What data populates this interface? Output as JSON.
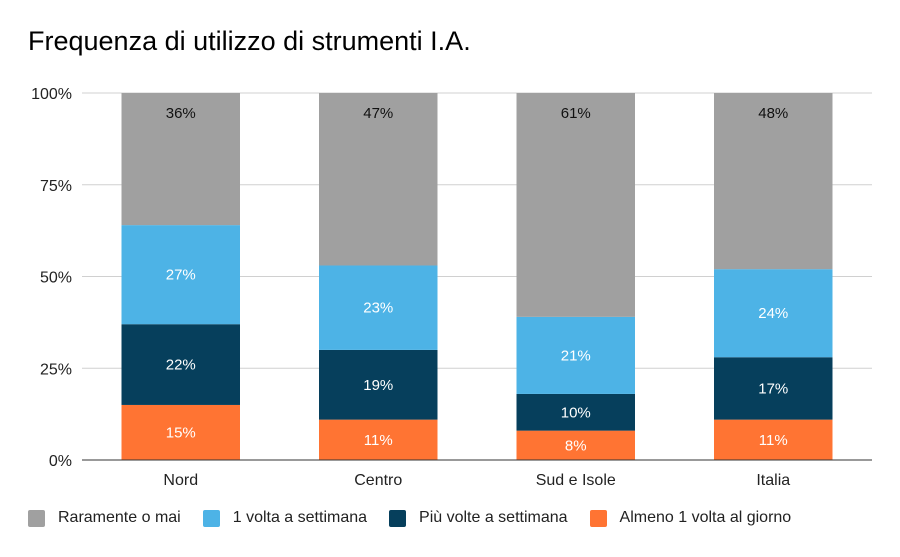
{
  "chart_data": {
    "type": "bar",
    "stacked": true,
    "title": "Frequenza di utilizzo di strumenti I.A.",
    "xlabel": "",
    "ylabel": "",
    "ylim": [
      0,
      100
    ],
    "yticks": [
      "0%",
      "25%",
      "50%",
      "75%",
      "100%"
    ],
    "ytick_values": [
      0,
      25,
      50,
      75,
      100
    ],
    "categories": [
      "Nord",
      "Centro",
      "Sud e Isole",
      "Italia"
    ],
    "series": [
      {
        "name": "Almeno 1 volta al giorno",
        "color": "#ff7433",
        "label_color": "#ffffff",
        "values": [
          15,
          11,
          8,
          11
        ]
      },
      {
        "name": "Più volte a settimana",
        "color": "#063f5c",
        "label_color": "#ffffff",
        "values": [
          22,
          19,
          10,
          17
        ]
      },
      {
        "name": "1 volta a settimana",
        "color": "#4db3e6",
        "label_color": "#ffffff",
        "values": [
          27,
          23,
          21,
          24
        ]
      },
      {
        "name": "Raramente o mai",
        "color": "#a0a0a0",
        "label_color": "#111111",
        "values": [
          36,
          47,
          61,
          48
        ]
      }
    ],
    "legend_order": [
      3,
      2,
      1,
      0
    ],
    "legend_position": "bottom",
    "grid": true
  }
}
